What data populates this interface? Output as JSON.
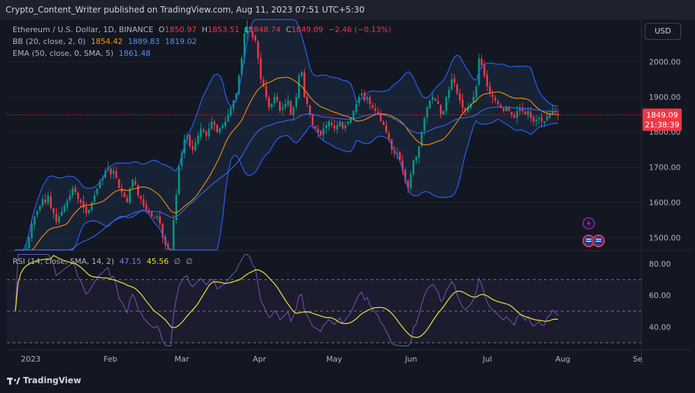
{
  "header": {
    "published": "Crypto_Content_Writer published on TradingView.com, Aug 11, 2023 07:51 UTC+5:30"
  },
  "currency_button": "USD",
  "legend": {
    "symbol": "Ethereum / U.S. Dollar, 1D, BINANCE",
    "o_label": "O",
    "o_value": "1850.97",
    "h_label": "H",
    "h_value": "1853.51",
    "l_label": "L",
    "l_value": "1848.74",
    "c_label": "C",
    "c_value": "1849.09",
    "change": "−2.46 (−0.13%)",
    "bb_label": "BB (20, close, 2, 0)",
    "bb_basis": "1854.42",
    "bb_upper": "1889.83",
    "bb_lower": "1819.02",
    "ema_label": "EMA (50, close, 0, SMA, 5)",
    "ema_value": "1861.48",
    "rsi_label": "RSI (14, close, SMA, 14, 2)",
    "rsi_value": "47.15",
    "rsi_ma_value": "45.56",
    "rsi_extra1": "∅",
    "rsi_extra2": "∅"
  },
  "price_tag": {
    "price": "1849.09",
    "countdown": "21:38:39"
  },
  "footer": {
    "logo_text": "TradingView"
  },
  "colors": {
    "up": "#089981",
    "down": "#f23645",
    "bb": "#2962ff",
    "bb_fill": "#1c2b46",
    "ema": "#ff9800",
    "rsi": "#7e57c2",
    "rsi_ma": "#e8de3a"
  },
  "chart_data": {
    "type": "candlestick",
    "title": "Ethereum / U.S. Dollar, 1D, BINANCE",
    "price_axis": {
      "ticks": [
        "2000.00",
        "1900.00",
        "1800.00",
        "1700.00",
        "1600.00",
        "1500.00"
      ],
      "ylim": [
        1465,
        2120
      ]
    },
    "time_axis": {
      "ticks": [
        "2023",
        "Feb",
        "Mar",
        "Apr",
        "May",
        "Jun",
        "Jul",
        "Aug",
        "Se"
      ]
    },
    "closes_daily": [
      1400,
      1415,
      1430,
      1455,
      1470,
      1500,
      1540,
      1560,
      1575,
      1590,
      1610,
      1600,
      1620,
      1585,
      1570,
      1545,
      1560,
      1575,
      1590,
      1605,
      1620,
      1640,
      1630,
      1610,
      1600,
      1585,
      1570,
      1580,
      1600,
      1620,
      1640,
      1660,
      1670,
      1690,
      1700,
      1680,
      1690,
      1670,
      1640,
      1630,
      1615,
      1600,
      1640,
      1665,
      1650,
      1620,
      1610,
      1590,
      1580,
      1570,
      1560,
      1555,
      1560,
      1540,
      1500,
      1480,
      1460,
      1450,
      1550,
      1620,
      1700,
      1740,
      1780,
      1790,
      1760,
      1750,
      1770,
      1790,
      1810,
      1800,
      1790,
      1810,
      1830,
      1820,
      1800,
      1810,
      1820,
      1830,
      1850,
      1870,
      1890,
      1910,
      1960,
      2010,
      2080,
      2100,
      2090,
      2070,
      2060,
      2010,
      1950,
      1930,
      1900,
      1870,
      1880,
      1900,
      1890,
      1860,
      1870,
      1880,
      1890,
      1850,
      1870,
      1900,
      1960,
      1970,
      1900,
      1880,
      1850,
      1820,
      1810,
      1800,
      1790,
      1810,
      1820,
      1830,
      1820,
      1810,
      1820,
      1830,
      1810,
      1820,
      1830,
      1840,
      1860,
      1880,
      1900,
      1910,
      1890,
      1900,
      1880,
      1870,
      1860,
      1850,
      1830,
      1820,
      1800,
      1780,
      1750,
      1740,
      1740,
      1720,
      1690,
      1660,
      1640,
      1680,
      1720,
      1730,
      1760,
      1800,
      1840,
      1870,
      1890,
      1900,
      1890,
      1880,
      1850,
      1860,
      1900,
      1920,
      1950,
      1940,
      1910,
      1890,
      1870,
      1860,
      1870,
      1880,
      1900,
      1930,
      2010,
      1990,
      1960,
      1930,
      1910,
      1900,
      1890,
      1880,
      1870,
      1860,
      1870,
      1860,
      1850,
      1840,
      1860,
      1870,
      1860,
      1850,
      1860,
      1840,
      1830,
      1835,
      1840,
      1830,
      1830,
      1845,
      1850,
      1860,
      1855,
      1849.09
    ],
    "rsi": {
      "name": "RSI (14, close, SMA, 14, 2)",
      "ticks": [
        "80.00",
        "60.00",
        "40.00"
      ],
      "ylim": [
        26,
        88
      ],
      "band": [
        30,
        70
      ],
      "mid": 50
    }
  }
}
